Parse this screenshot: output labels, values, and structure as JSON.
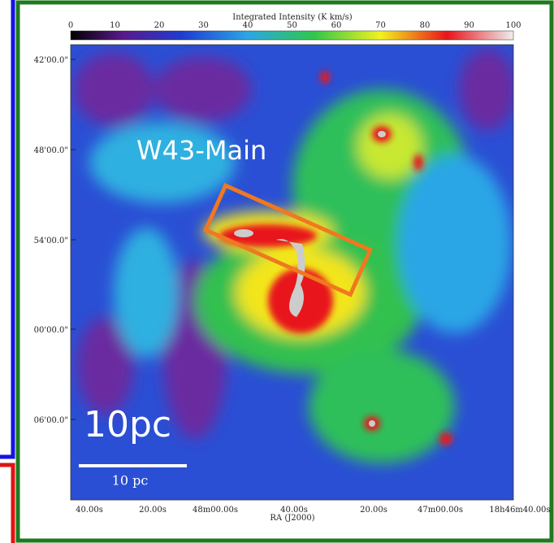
{
  "colorbar": {
    "label": "Integrated Intensity (K km/s)",
    "ticks": [
      "0",
      "10",
      "20",
      "30",
      "40",
      "50",
      "60",
      "70",
      "80",
      "90",
      "100"
    ]
  },
  "y_axis": {
    "ticks": [
      "42'00.0\"",
      "48'00.0\"",
      "54'00.0\"",
      "00'00.0\"",
      "06'00.0\""
    ]
  },
  "x_axis": {
    "label": "RA (J2000)",
    "ticks": [
      "40.00s",
      "20.00s",
      "48m00.00s",
      "40.00s",
      "20.00s",
      "47m00.00s",
      "18h46m40.00s"
    ]
  },
  "annotations": {
    "region": "W43-Main",
    "scale_large": "10pc",
    "scale_bar": "10 pc"
  }
}
